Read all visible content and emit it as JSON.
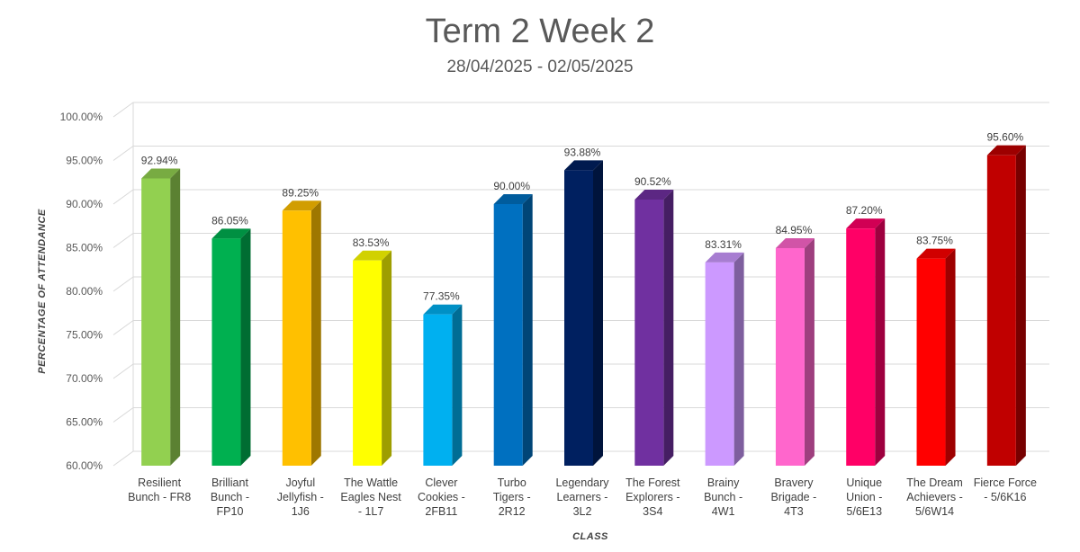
{
  "chart_data": {
    "type": "bar",
    "title": "Term 2 Week 2",
    "subtitle": "28/04/2025 - 02/05/2025",
    "xlabel": "CLASS",
    "ylabel": "PERCENTAGE OF ATTENDANCE",
    "ylim": [
      60,
      100
    ],
    "yticks": [
      "60.00%",
      "65.00%",
      "70.00%",
      "75.00%",
      "80.00%",
      "85.00%",
      "90.00%",
      "95.00%",
      "100.00%"
    ],
    "grid": true,
    "categories": [
      [
        "Resilient",
        "Bunch - FR8"
      ],
      [
        "Brilliant",
        "Bunch -",
        "FP10"
      ],
      [
        "Joyful",
        "Jellyfish -",
        "1J6"
      ],
      [
        "The Wattle",
        "Eagles Nest",
        "- 1L7"
      ],
      [
        "Clever",
        "Cookies -",
        "2FB11"
      ],
      [
        "Turbo",
        "Tigers -",
        "2R12"
      ],
      [
        "Legendary",
        "Learners -",
        "3L2"
      ],
      [
        "The Forest",
        "Explorers -",
        "3S4"
      ],
      [
        "Brainy",
        "Bunch -",
        "4W1"
      ],
      [
        "Bravery",
        "Brigade -",
        "4T3"
      ],
      [
        "Unique",
        "Union -",
        "5/6E13"
      ],
      [
        "The Dream",
        "Achievers -",
        "5/6W14"
      ],
      [
        "Fierce Force",
        "- 5/6K16"
      ]
    ],
    "values": [
      92.94,
      86.05,
      89.25,
      83.53,
      77.35,
      90.0,
      93.88,
      90.52,
      83.31,
      84.95,
      87.2,
      83.75,
      95.6
    ],
    "value_labels": [
      "92.94%",
      "86.05%",
      "89.25%",
      "83.53%",
      "77.35%",
      "90.00%",
      "93.88%",
      "90.52%",
      "83.31%",
      "84.95%",
      "87.20%",
      "83.75%",
      "95.60%"
    ],
    "colors": [
      "#92d050",
      "#00b050",
      "#ffc000",
      "#ffff00",
      "#00b0f0",
      "#0070c0",
      "#002060",
      "#7030a0",
      "#cc99ff",
      "#ff66cc",
      "#ff0066",
      "#ff0000",
      "#c00000"
    ]
  }
}
